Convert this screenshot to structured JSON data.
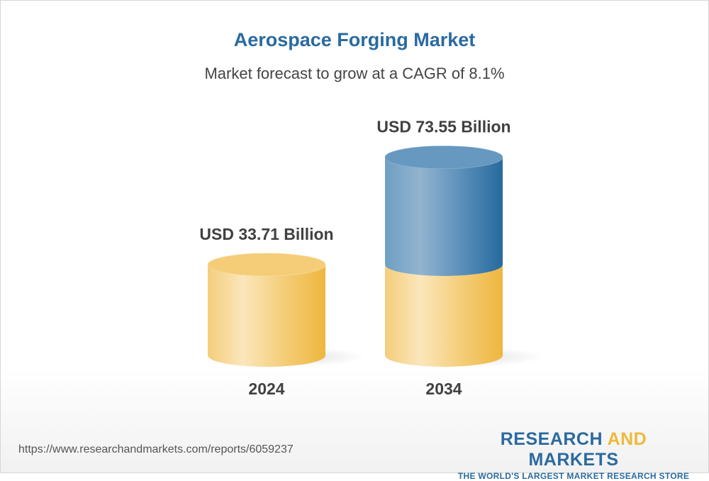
{
  "title": "Aerospace Forging Market",
  "subtitle": "Market forecast to grow at a CAGR of 8.1%",
  "chart_data": {
    "type": "bar",
    "style": "3d-cylinder",
    "categories": [
      "2024",
      "2034"
    ],
    "values": [
      33.71,
      73.55
    ],
    "data_labels": [
      "USD 33.71 Billion",
      "USD 73.55 Billion"
    ],
    "unit": "USD Billion",
    "colors": {
      "base": "#f2bd4a",
      "growth": "#2a6aa0"
    }
  },
  "footer": {
    "url": "https://www.researchandmarkets.com/reports/6059237",
    "logo_part1": "RESEARCH ",
    "logo_part2": "AND",
    "logo_part3": " MARKETS",
    "tagline": "THE WORLD'S LARGEST MARKET RESEARCH STORE"
  }
}
